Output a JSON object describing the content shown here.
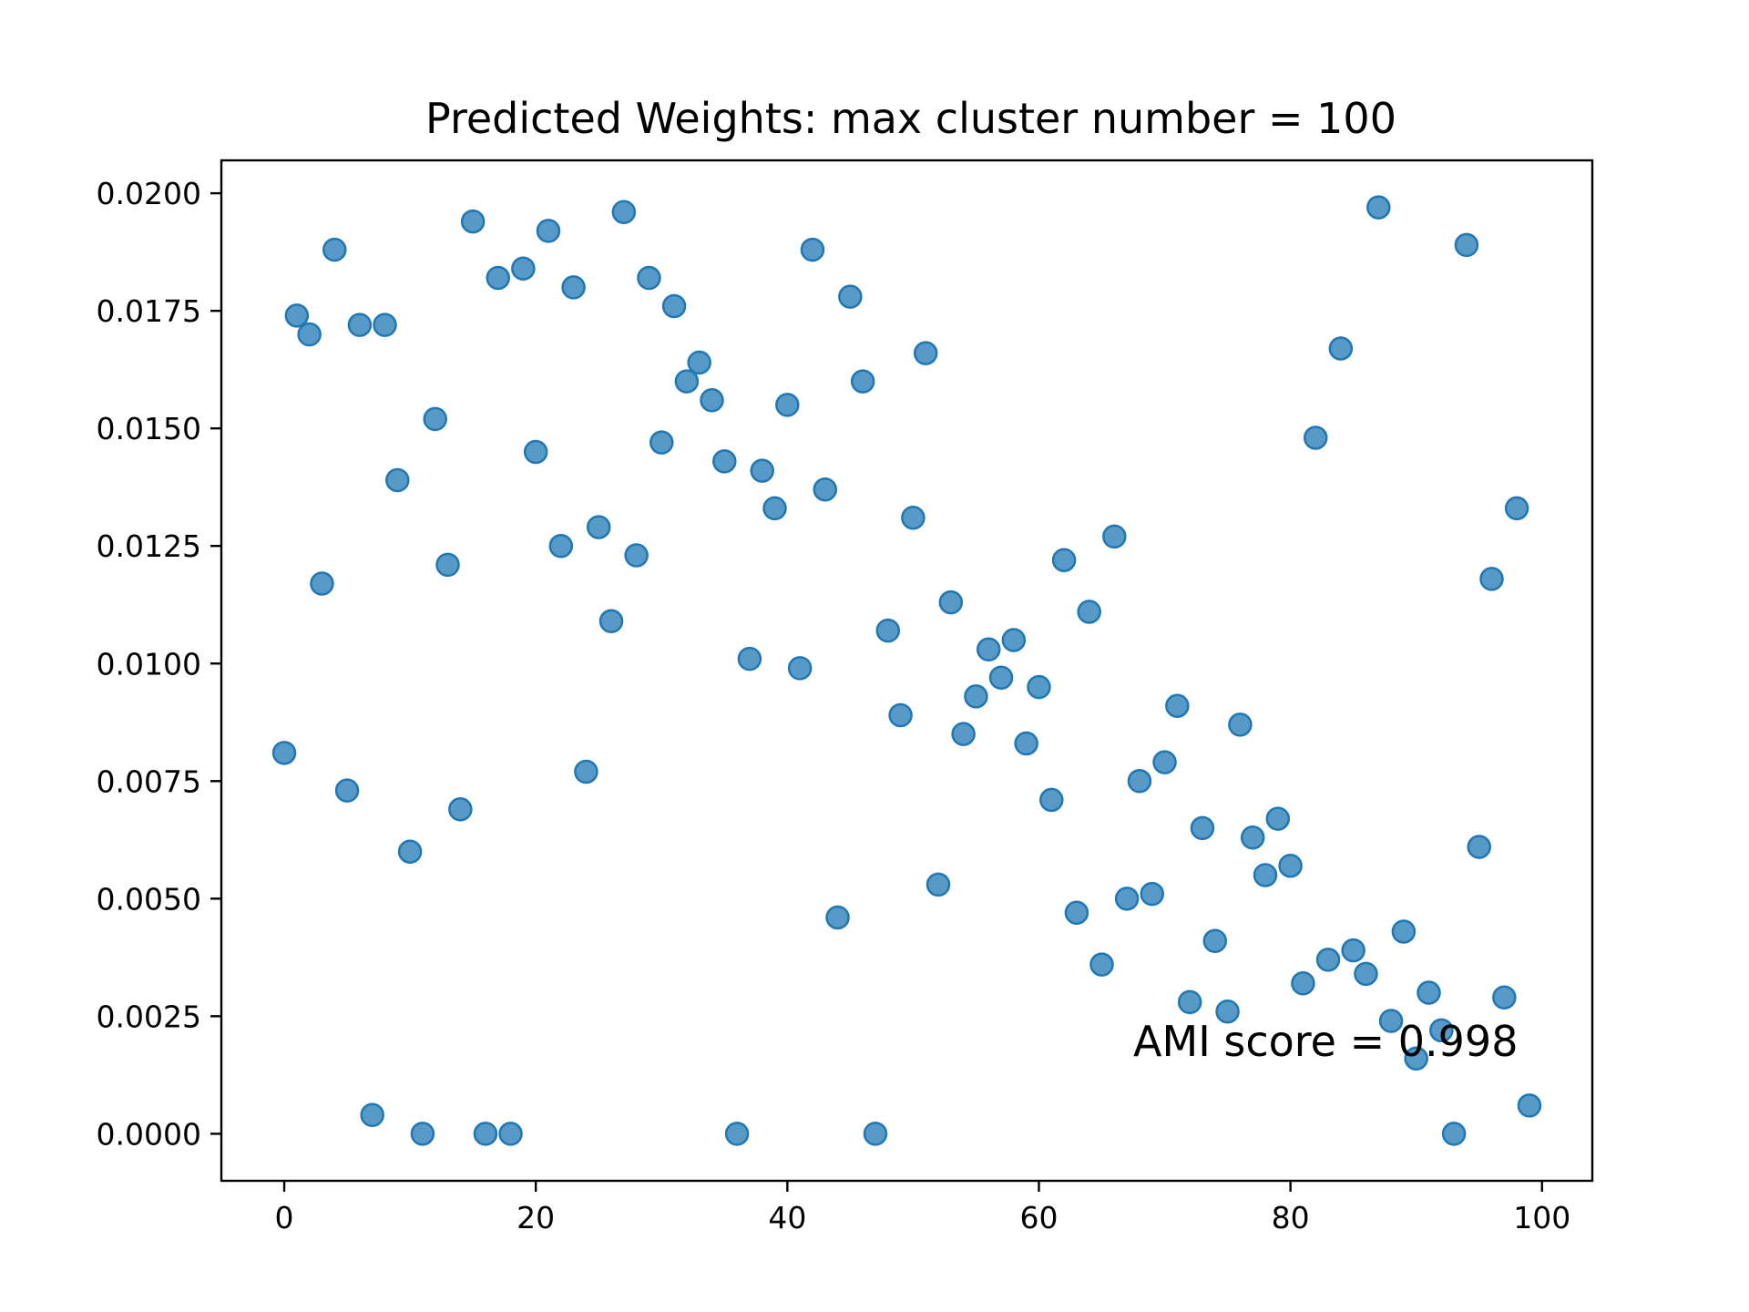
{
  "chart_data": {
    "type": "scatter",
    "title": "Predicted Weights: max cluster number = 100",
    "xlabel": "",
    "ylabel": "",
    "xlim": [
      -5,
      104
    ],
    "ylim": [
      -0.001,
      0.0207
    ],
    "xticks": [
      0,
      20,
      40,
      60,
      80,
      100
    ],
    "xtick_labels": [
      "0",
      "20",
      "40",
      "60",
      "80",
      "100"
    ],
    "yticks": [
      0,
      0.0025,
      0.005,
      0.0075,
      0.01,
      0.0125,
      0.015,
      0.0175,
      0.02
    ],
    "ytick_labels": [
      "0.0000",
      "0.0025",
      "0.0050",
      "0.0075",
      "0.0100",
      "0.0125",
      "0.0150",
      "0.0175",
      "0.0200"
    ],
    "grid": false,
    "point_color": "#1f77b4",
    "point_alpha": 0.75,
    "annotation": {
      "text": "AMI score = 0.998",
      "x": 67.5,
      "y": 0.00165
    },
    "x": [
      0,
      1,
      2,
      3,
      4,
      5,
      6,
      7,
      8,
      9,
      10,
      11,
      12,
      13,
      14,
      15,
      16,
      17,
      18,
      19,
      20,
      21,
      22,
      23,
      24,
      25,
      26,
      27,
      28,
      29,
      30,
      31,
      32,
      33,
      34,
      35,
      36,
      37,
      38,
      39,
      40,
      41,
      42,
      43,
      44,
      45,
      46,
      47,
      48,
      49,
      50,
      51,
      52,
      53,
      54,
      55,
      56,
      57,
      58,
      59,
      60,
      61,
      62,
      63,
      64,
      65,
      66,
      67,
      68,
      69,
      70,
      71,
      72,
      73,
      74,
      75,
      76,
      77,
      78,
      79,
      80,
      81,
      82,
      83,
      84,
      85,
      86,
      87,
      88,
      89,
      90,
      91,
      92,
      93,
      94,
      95,
      96,
      97,
      98,
      99
    ],
    "y": [
      0.0081,
      0.0174,
      0.017,
      0.0117,
      0.0188,
      0.0073,
      0.0172,
      0.0004,
      0.0172,
      0.0139,
      0.006,
      0.0,
      0.0152,
      0.0121,
      0.0069,
      0.0194,
      0.0,
      0.0182,
      0.0,
      0.0184,
      0.0145,
      0.0192,
      0.0125,
      0.018,
      0.0077,
      0.0129,
      0.0109,
      0.0196,
      0.0123,
      0.0182,
      0.0147,
      0.0176,
      0.016,
      0.0164,
      0.0156,
      0.0143,
      0.0,
      0.0101,
      0.0141,
      0.0133,
      0.0155,
      0.0099,
      0.0188,
      0.0137,
      0.0046,
      0.0178,
      0.016,
      0.0,
      0.0107,
      0.0089,
      0.0131,
      0.0166,
      0.0053,
      0.0113,
      0.0085,
      0.0093,
      0.0103,
      0.0097,
      0.0105,
      0.0083,
      0.0095,
      0.0071,
      0.0122,
      0.0047,
      0.0111,
      0.0036,
      0.0127,
      0.005,
      0.0075,
      0.0051,
      0.0079,
      0.0091,
      0.0028,
      0.0065,
      0.0041,
      0.0026,
      0.0087,
      0.0063,
      0.0055,
      0.0067,
      0.0057,
      0.0032,
      0.0148,
      0.0037,
      0.0167,
      0.0039,
      0.0034,
      0.0197,
      0.0024,
      0.0043,
      0.0016,
      0.003,
      0.0022,
      0.0,
      0.0189,
      0.0061,
      0.0118,
      0.0029,
      0.0133,
      0.0006
    ]
  }
}
